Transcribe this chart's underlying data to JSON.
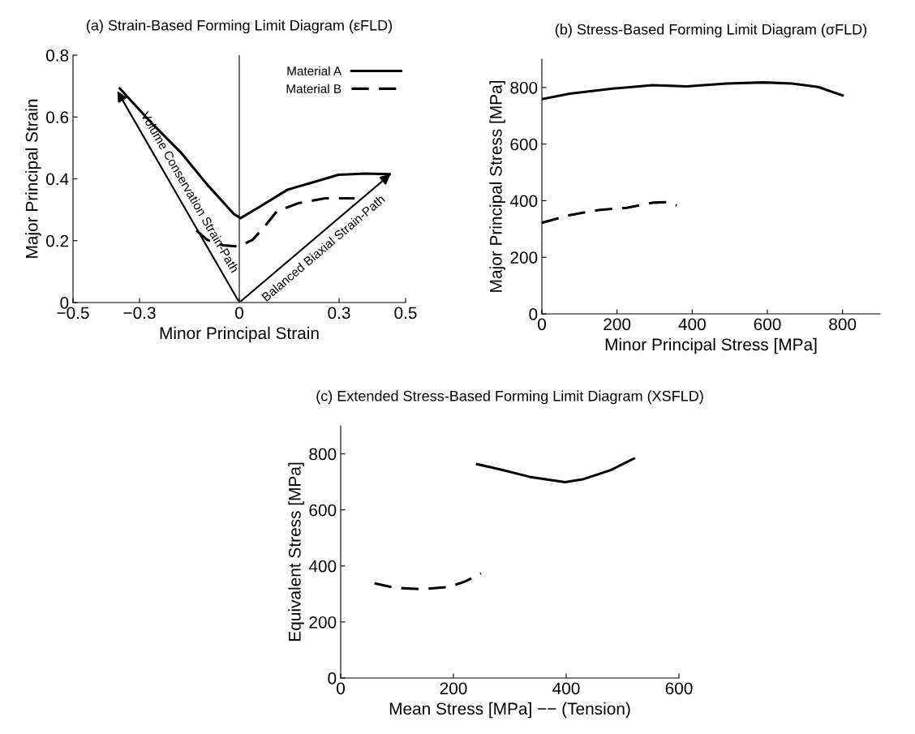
{
  "chart_data": [
    {
      "type": "line",
      "title": "(a) Strain-Based Forming Limit Diagram (εFLD)",
      "xlabel": "Minor Principal Strain",
      "ylabel": "Major Principal Strain",
      "xlim": [
        -0.5,
        0.5
      ],
      "xticks": [
        {
          "value": -0.5,
          "label": "−0.5"
        },
        {
          "value": -0.3,
          "label": "−0.3"
        },
        0,
        0.3,
        0.5
      ],
      "ylim": [
        0,
        0.8
      ],
      "yticks": [
        0,
        0.2,
        0.4,
        0.6,
        0.8
      ],
      "grid": false,
      "legend": "top right",
      "marker": "none",
      "series": [
        {
          "name": "Material A",
          "color": "#000000",
          "line_style": "solid",
          "x": [
            -0.359,
            -0.258,
            -0.177,
            -0.097,
            -0.016,
            0.004,
            0.065,
            0.145,
            0.226,
            0.298,
            0.379,
            0.452
          ],
          "values": [
            0.692,
            0.574,
            0.487,
            0.382,
            0.286,
            0.273,
            0.312,
            0.365,
            0.39,
            0.413,
            0.417,
            0.415
          ]
        },
        {
          "name": "Material B",
          "color": "#000000",
          "line_style": "dashed",
          "x": [
            -0.129,
            -0.097,
            -0.048,
            0.0,
            0.04,
            0.073,
            0.113,
            0.177,
            0.258,
            0.347
          ],
          "values": [
            0.233,
            0.203,
            0.185,
            0.181,
            0.203,
            0.242,
            0.295,
            0.321,
            0.337,
            0.337
          ]
        }
      ],
      "ref_lines": [
        {
          "axis": "x",
          "value": 0,
          "color": "#000000"
        }
      ],
      "annotations": [
        {
          "text": "Volume Conservation Strain-Path",
          "x": -0.37,
          "y": 0.69
        },
        {
          "text": "Balanced Biaxial Strain-Path",
          "x": 0.46,
          "y": 0.42
        }
      ]
    },
    {
      "type": "line",
      "title": "(b) Stress-Based Forming Limit Diagram (σFLD)",
      "xlabel": "Minor Principal Stress [MPa]",
      "ylabel": "Major Principal Stress [MPa]",
      "xlim": [
        0,
        900
      ],
      "xticks": [
        0,
        200,
        400,
        600,
        800
      ],
      "ylim": [
        0,
        900
      ],
      "yticks": [
        0,
        200,
        400,
        600,
        800
      ],
      "grid": false,
      "marker": "none",
      "series": [
        {
          "color": "#000000",
          "line_style": "solid",
          "x": [
            0,
            74,
            188,
            295,
            386,
            492,
            590,
            666,
            735,
            800
          ],
          "values": [
            759,
            778,
            796,
            808,
            804,
            814,
            818,
            814,
            802,
            772
          ]
        },
        {
          "color": "#000000",
          "line_style": "dashed",
          "x": [
            0,
            74,
            150,
            226,
            295,
            333,
            359
          ],
          "values": [
            322,
            349,
            367,
            375,
            393,
            395,
            383
          ]
        }
      ]
    },
    {
      "type": "line",
      "title": "(c) Extended Stress-Based Forming Limit Diagram (XSFLD)",
      "xlabel": "Mean Stress [MPa] −− (Tension)",
      "ylabel": "Equivalent Stress [MPa]",
      "xlim": [
        0,
        600
      ],
      "xticks": [
        0,
        200,
        400,
        600
      ],
      "ylim": [
        0,
        900
      ],
      "yticks": [
        0,
        200,
        400,
        600,
        800
      ],
      "grid": false,
      "marker": "none",
      "series": [
        {
          "color": "#000000",
          "line_style": "solid",
          "x": [
            242,
            287,
            335,
            398,
            431,
            479,
            520
          ],
          "values": [
            763,
            742,
            718,
            699,
            710,
            742,
            783
          ]
        },
        {
          "color": "#000000",
          "line_style": "dashed",
          "x": [
            60,
            96,
            144,
            192,
            220,
            249
          ],
          "values": [
            338,
            322,
            317,
            325,
            344,
            373
          ]
        }
      ]
    }
  ]
}
